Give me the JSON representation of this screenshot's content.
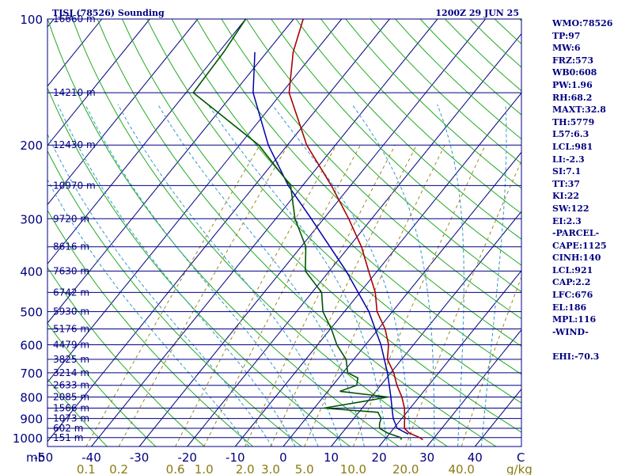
{
  "header": {
    "station": "TJSJ (78526) Sounding",
    "time": "1200Z 29 JUN 25"
  },
  "indices": [
    "WMO:78526",
    "TP:97",
    "MW:6",
    "FRZ:573",
    "WB0:608",
    "PW:1.96",
    "RH:68.2",
    "MAXT:32.8",
    "TH:5779",
    "L57:6.3",
    "LCL:981",
    "LI:-2.3",
    "SI:7.1",
    "TT:37",
    "KI:22",
    "SW:122",
    "EI:2.3",
    "-PARCEL-",
    "CAPE:1125",
    "CINH:140",
    "LCL:921",
    "CAP:2.2",
    "LFC:676",
    "EL:186",
    "MPL:116",
    "-WIND-",
    "",
    "EHI:-70.3"
  ],
  "colors": {
    "frame": "#000080",
    "isobar": "#000080",
    "isotherm": "#000080",
    "dry_adiabat": "#22aa22",
    "moist_adiabat": "#3399cc",
    "mixing_ratio": "#9a8a20",
    "temperature": "#aa0000",
    "dewpoint": "#005500",
    "parcel": "#0000aa"
  },
  "chart_data": {
    "type": "skew-t",
    "pressure_unit_label": "mb",
    "x_unit_label": "C",
    "mixing_unit_label": "g/kg",
    "pressure_ticks": [
      100,
      200,
      300,
      400,
      500,
      600,
      700,
      800,
      900,
      1000
    ],
    "temp_ticks": [
      {
        "value": -50,
        "label": "-50"
      },
      {
        "value": -40,
        "label": "-40"
      },
      {
        "value": -30,
        "label": "-30"
      },
      {
        "value": -20,
        "label": "-20"
      },
      {
        "value": -10,
        "label": "-10"
      },
      {
        "value": 0,
        "label": "0"
      },
      {
        "value": 10,
        "label": "10"
      },
      {
        "value": 20,
        "label": "20"
      },
      {
        "value": 30,
        "label": "30"
      },
      {
        "value": 40,
        "label": "40"
      }
    ],
    "mixing_ratio_labels": [
      "0.1",
      "0.2",
      "0.6",
      "1.0",
      "2.0",
      "3.0",
      "5.0",
      "10.0",
      "20.0",
      "40.0"
    ],
    "mixing_ratio_values": [
      0.1,
      0.2,
      0.6,
      1.0,
      2.0,
      3.0,
      5.0,
      10.0,
      20.0,
      40.0
    ],
    "height_labels": [
      {
        "p": 100,
        "label": "16660 m"
      },
      {
        "p": 150,
        "label": "14210 m"
      },
      {
        "p": 200,
        "label": "12430 m"
      },
      {
        "p": 250,
        "label": "10970 m"
      },
      {
        "p": 300,
        "label": "9720 m"
      },
      {
        "p": 350,
        "label": "8616 m"
      },
      {
        "p": 400,
        "label": "7630 m"
      },
      {
        "p": 450,
        "label": "6742 m"
      },
      {
        "p": 500,
        "label": "5930 m"
      },
      {
        "p": 550,
        "label": "5176 m"
      },
      {
        "p": 600,
        "label": "4479 m"
      },
      {
        "p": 650,
        "label": "3825 m"
      },
      {
        "p": 700,
        "label": "3214 m"
      },
      {
        "p": 750,
        "label": "2633 m"
      },
      {
        "p": 800,
        "label": "2085 m"
      },
      {
        "p": 850,
        "label": "1566 m"
      },
      {
        "p": 900,
        "label": "1073 m"
      },
      {
        "p": 950,
        "label": "602 m"
      },
      {
        "p": 1000,
        "label": "151 m"
      }
    ],
    "temperature": [
      [
        1012,
        28.0
      ],
      [
        1000,
        27.0
      ],
      [
        975,
        24.0
      ],
      [
        950,
        22.2
      ],
      [
        925,
        21.4
      ],
      [
        900,
        20.6
      ],
      [
        850,
        18.8
      ],
      [
        800,
        16.4
      ],
      [
        750,
        13.4
      ],
      [
        700,
        10.6
      ],
      [
        650,
        7.0
      ],
      [
        600,
        4.8
      ],
      [
        550,
        1.4
      ],
      [
        500,
        -3.2
      ],
      [
        450,
        -6.8
      ],
      [
        400,
        -11.8
      ],
      [
        350,
        -17.4
      ],
      [
        300,
        -24.8
      ],
      [
        250,
        -34.0
      ],
      [
        200,
        -46.0
      ],
      [
        150,
        -58.5
      ],
      [
        120,
        -64.5
      ],
      [
        100,
        -68.0
      ]
    ],
    "dewpoint": [
      [
        1012,
        23.5
      ],
      [
        1000,
        23.0
      ],
      [
        975,
        19.5
      ],
      [
        950,
        17.0
      ],
      [
        925,
        16.2
      ],
      [
        900,
        15.7
      ],
      [
        870,
        14.0
      ],
      [
        850,
        2.0
      ],
      [
        820,
        9.0
      ],
      [
        800,
        13.5
      ],
      [
        775,
        2.5
      ],
      [
        750,
        5.0
      ],
      [
        720,
        4.0
      ],
      [
        700,
        1.0
      ],
      [
        650,
        -1.6
      ],
      [
        600,
        -6.0
      ],
      [
        550,
        -9.8
      ],
      [
        500,
        -14.5
      ],
      [
        450,
        -18.0
      ],
      [
        400,
        -25.0
      ],
      [
        350,
        -29.0
      ],
      [
        300,
        -36.0
      ],
      [
        250,
        -42.5
      ],
      [
        200,
        -56.0
      ],
      [
        150,
        -78.5
      ],
      [
        120,
        -79.0
      ],
      [
        100,
        -80.0
      ]
    ],
    "parcel": [
      [
        981,
        24.0
      ],
      [
        950,
        20.7
      ],
      [
        900,
        18.2
      ],
      [
        850,
        16.2
      ],
      [
        800,
        14.1
      ],
      [
        700,
        9.3
      ],
      [
        600,
        3.2
      ],
      [
        500,
        -4.9
      ],
      [
        400,
        -16.5
      ],
      [
        300,
        -32.6
      ],
      [
        250,
        -43.0
      ],
      [
        200,
        -54.0
      ],
      [
        150,
        -66.0
      ],
      [
        120,
        -72.5
      ]
    ]
  }
}
